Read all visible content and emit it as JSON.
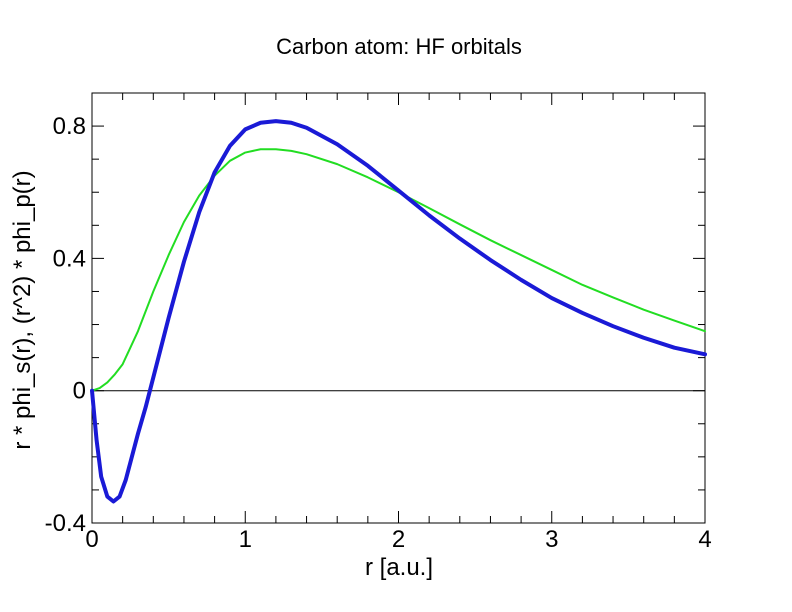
{
  "chart_data": {
    "type": "line",
    "title": "Carbon atom: HF orbitals",
    "xlabel": "r [a.u.]",
    "ylabel": "r * phi_s(r),  (r^2) * phi_p(r)",
    "xlim": [
      0,
      4
    ],
    "ylim": [
      -0.4,
      0.9
    ],
    "xticks": [
      0,
      1,
      2,
      3,
      4
    ],
    "xtick_labels": [
      "0",
      "1",
      "2",
      "3",
      "4"
    ],
    "yticks": [
      -0.4,
      0,
      0.4,
      0.8
    ],
    "ytick_labels": [
      "-0.4",
      "0",
      "0.4",
      "0.8"
    ],
    "grid": false,
    "zero_line": true,
    "series": [
      {
        "color": "#22dd22",
        "x": [
          0,
          0.05,
          0.1,
          0.15,
          0.2,
          0.3,
          0.4,
          0.5,
          0.6,
          0.7,
          0.8,
          0.9,
          1.0,
          1.1,
          1.2,
          1.3,
          1.4,
          1.6,
          1.8,
          2.0,
          2.2,
          2.4,
          2.6,
          2.8,
          3.0,
          3.2,
          3.4,
          3.6,
          3.8,
          4.0
        ],
        "y": [
          0.0,
          0.008,
          0.025,
          0.05,
          0.08,
          0.18,
          0.3,
          0.41,
          0.51,
          0.59,
          0.65,
          0.695,
          0.72,
          0.73,
          0.73,
          0.725,
          0.715,
          0.685,
          0.645,
          0.6,
          0.552,
          0.503,
          0.455,
          0.41,
          0.365,
          0.32,
          0.282,
          0.245,
          0.212,
          0.18
        ]
      },
      {
        "color": "#1a1ad6",
        "x": [
          0,
          0.03,
          0.06,
          0.1,
          0.14,
          0.18,
          0.22,
          0.26,
          0.3,
          0.35,
          0.4,
          0.5,
          0.6,
          0.7,
          0.8,
          0.9,
          1.0,
          1.1,
          1.2,
          1.3,
          1.4,
          1.6,
          1.8,
          2.0,
          2.2,
          2.4,
          2.6,
          2.8,
          3.0,
          3.2,
          3.4,
          3.6,
          3.8,
          4.0
        ],
        "y": [
          0.0,
          -0.15,
          -0.26,
          -0.32,
          -0.335,
          -0.32,
          -0.27,
          -0.2,
          -0.13,
          -0.05,
          0.04,
          0.22,
          0.39,
          0.54,
          0.66,
          0.74,
          0.79,
          0.81,
          0.815,
          0.81,
          0.795,
          0.745,
          0.68,
          0.605,
          0.53,
          0.46,
          0.395,
          0.335,
          0.28,
          0.235,
          0.195,
          0.16,
          0.13,
          0.11
        ]
      }
    ]
  }
}
